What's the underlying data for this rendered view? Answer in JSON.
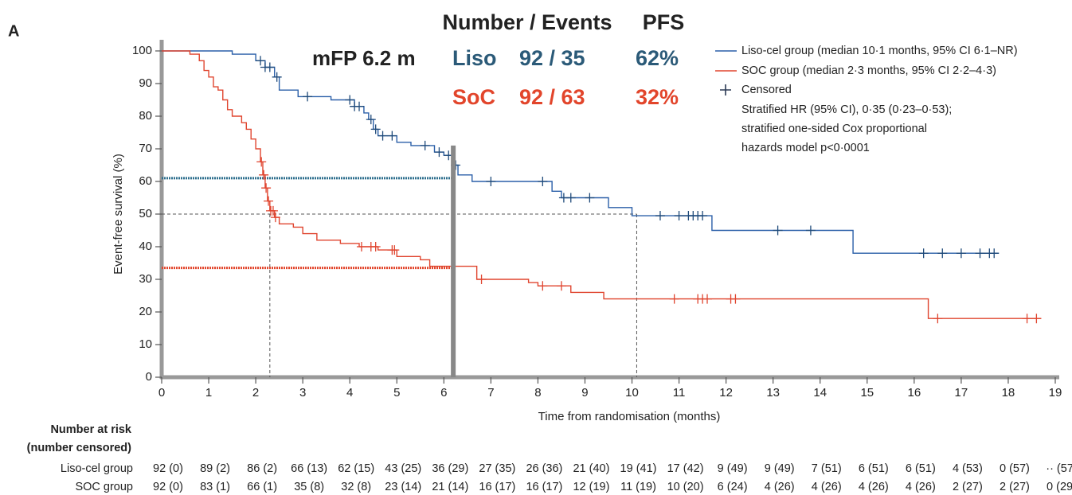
{
  "panel_label": "A",
  "header": {
    "col1": "Number / Events",
    "col2": "PFS",
    "median_note": "mFP 6.2 m",
    "rows": [
      {
        "name": "Liso",
        "events": "92 / 35",
        "pfs": "62%",
        "color": "#2b5a78"
      },
      {
        "name": "SoC",
        "events": "92 / 63",
        "pfs": "32%",
        "color": "#e2452b"
      }
    ]
  },
  "chart_data": {
    "type": "step",
    "x_label": "Time from randomisation (months)",
    "y_label": "Event-free survival (%)",
    "xlim": [
      0,
      19
    ],
    "ylim": [
      0,
      100
    ],
    "xticks": [
      0,
      1,
      2,
      3,
      4,
      5,
      6,
      7,
      8,
      9,
      10,
      11,
      12,
      13,
      14,
      15,
      16,
      17,
      18,
      19
    ],
    "yticks": [
      0,
      10,
      20,
      30,
      40,
      50,
      60,
      70,
      80,
      90,
      100
    ],
    "series": [
      {
        "name": "Liso-cel group (median 10·1 months, 95% CI 6·1–NR)",
        "color": "#2a5fa8",
        "x": [
          0,
          1.5,
          2.0,
          2.2,
          2.4,
          2.5,
          2.9,
          3.6,
          4.1,
          4.3,
          4.4,
          4.5,
          4.6,
          5.0,
          5.3,
          5.8,
          6.0,
          6.2,
          6.3,
          6.6,
          8.3,
          8.5,
          9.5,
          10.0,
          11.7,
          14.7,
          17.8
        ],
        "values": [
          100,
          99,
          97,
          95,
          92,
          88,
          86,
          85,
          83,
          81,
          79,
          76,
          74,
          72,
          71,
          69,
          68,
          65,
          62,
          60,
          57,
          55,
          52,
          49.5,
          45,
          38,
          38
        ],
        "censored": [
          2.1,
          2.2,
          2.3,
          2.45,
          3.1,
          4.0,
          4.1,
          4.2,
          4.45,
          4.55,
          4.7,
          4.9,
          5.6,
          5.9,
          6.1,
          6.25,
          7.0,
          8.1,
          8.55,
          8.7,
          9.1,
          10.6,
          11.0,
          11.2,
          11.3,
          11.4,
          11.5,
          13.1,
          13.8,
          16.2,
          16.6,
          17.0,
          17.4,
          17.6,
          17.7
        ]
      },
      {
        "name": "SOC group (median 2·3 months, 95% CI 2·2–4·3)",
        "color": "#e0452f",
        "x": [
          0,
          0.6,
          0.8,
          0.9,
          1.0,
          1.1,
          1.2,
          1.3,
          1.4,
          1.5,
          1.7,
          1.8,
          1.9,
          2.0,
          2.1,
          2.15,
          2.2,
          2.25,
          2.3,
          2.4,
          2.5,
          2.8,
          3.0,
          3.3,
          3.8,
          4.2,
          4.6,
          5.0,
          5.5,
          5.7,
          6.7,
          7.8,
          8.0,
          8.7,
          9.4,
          16.3,
          18.7
        ],
        "values": [
          100,
          99,
          97,
          94,
          92,
          89,
          88,
          85,
          82,
          80,
          78,
          76,
          73,
          70,
          66,
          62,
          58,
          54,
          51,
          49,
          47,
          46,
          44,
          42,
          41,
          40,
          39,
          37,
          36,
          34,
          30,
          29,
          28,
          26,
          24,
          18,
          18
        ],
        "censored": [
          2.12,
          2.17,
          2.22,
          2.27,
          2.32,
          2.37,
          2.42,
          4.25,
          4.45,
          4.55,
          4.9,
          4.95,
          6.8,
          8.1,
          8.5,
          10.9,
          11.4,
          11.5,
          11.6,
          12.1,
          12.2,
          16.5,
          18.4,
          18.6
        ]
      }
    ],
    "reference_lines": [
      {
        "y": 61,
        "x": [
          0,
          6.2
        ],
        "color": "#2e6f8e"
      },
      {
        "y": 33.5,
        "x": [
          0,
          6.2
        ],
        "color": "#e2452b"
      }
    ],
    "landmark_x": 6.2,
    "landmark_top": 71,
    "median_y": 50,
    "median_x": [
      2.3,
      10.1
    ],
    "legend": {
      "censored": "Censored",
      "note": [
        "Stratified HR (95% CI), 0·35 (0·23–0·53);",
        "stratified one-sided Cox proportional",
        "hazards model p<0·0001"
      ]
    }
  },
  "risk_table": {
    "title": [
      "Number at risk",
      "(number censored)"
    ],
    "rows": [
      {
        "label": "Liso-cel group",
        "cells": [
          "92 (0)",
          "89 (2)",
          "86 (2)",
          "66 (13)",
          "62 (15)",
          "43 (25)",
          "36 (29)",
          "27 (35)",
          "26 (36)",
          "21 (40)",
          "19 (41)",
          "17 (42)",
          "9 (49)",
          "9 (49)",
          "7 (51)",
          "6 (51)",
          "6 (51)",
          "4 (53)",
          "0 (57)",
          "·· (57)"
        ]
      },
      {
        "label": "SOC group",
        "cells": [
          "92 (0)",
          "83 (1)",
          "66 (1)",
          "35 (8)",
          "32 (8)",
          "23 (14)",
          "21 (14)",
          "16 (17)",
          "16 (17)",
          "12 (19)",
          "11 (19)",
          "10 (20)",
          "6 (24)",
          "4 (26)",
          "4 (26)",
          "4 (26)",
          "4 (26)",
          "2 (27)",
          "2 (27)",
          "0 (29)"
        ]
      }
    ]
  }
}
